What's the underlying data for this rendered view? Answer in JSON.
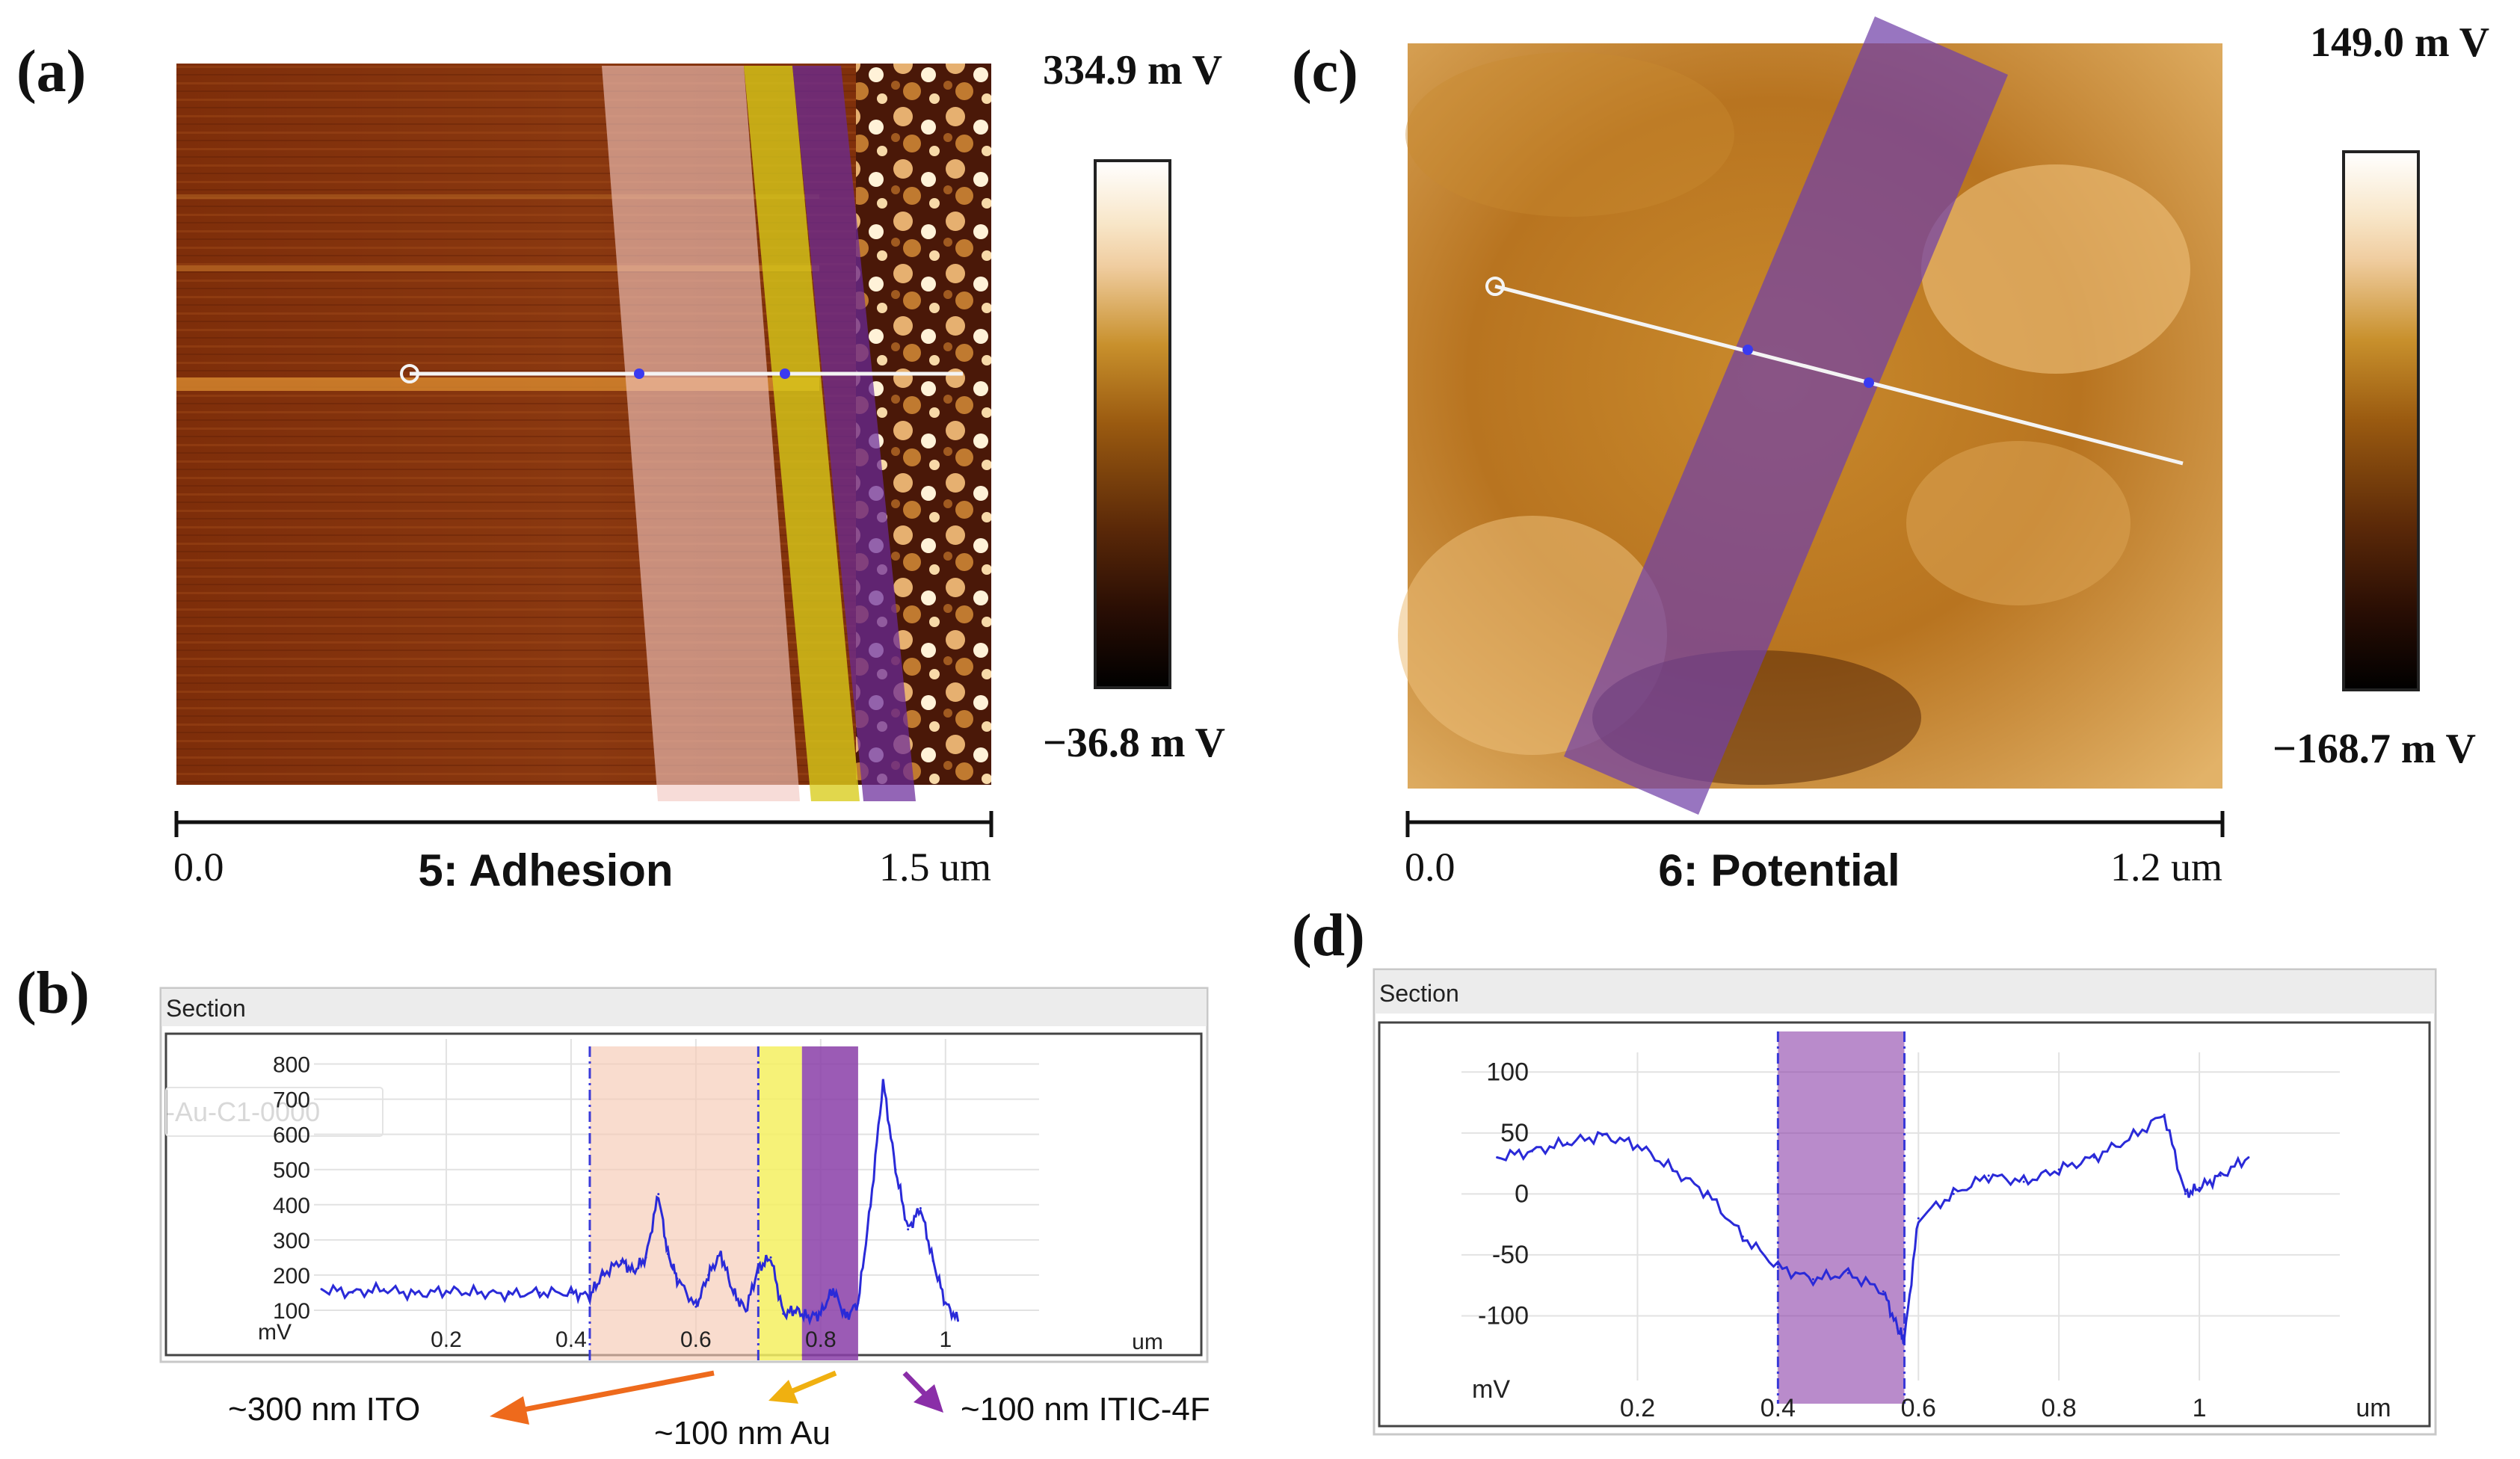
{
  "panels": {
    "a": {
      "label": "(a)",
      "title": "5: Adhesion",
      "scale_start": "0.0",
      "scale_end": "1.5 um",
      "colorbar_max": "334.9 m V",
      "colorbar_min": "−36.8 m V"
    },
    "c": {
      "label": "(c)",
      "title": "6: Potential",
      "scale_start": "0.0",
      "scale_end": "1.2 um",
      "colorbar_max": "149.0 m V",
      "colorbar_min": "−168.7 m V"
    },
    "b": {
      "label": "(b)",
      "header": "Section",
      "ghost_text": "-Au-C1-0000"
    },
    "d": {
      "label": "(d)",
      "header": "Section"
    }
  },
  "annotations": {
    "ito": "~300 nm ITO",
    "au": "~100 nm Au",
    "itic": "~100 nm ITIC-4F"
  },
  "colors": {
    "trace": "#2a2ad8",
    "ito_band": "#f6c9b4",
    "au_band": "#f4f060",
    "itic_band": "#8a3ea8",
    "ito_arrow": "#ee6a1c",
    "au_arrow": "#f0b010",
    "itic_arrow": "#8a2ea8"
  },
  "chart_data": [
    {
      "id": "b",
      "type": "line",
      "title": "Section",
      "xlabel": "um",
      "ylabel": "mV",
      "xlim": [
        0,
        1.15
      ],
      "ylim": [
        0,
        850
      ],
      "xticks": [
        0.2,
        0.4,
        0.6,
        0.8,
        1
      ],
      "xtick_labels": [
        "0.2",
        "0.4",
        "0.6",
        "0.8",
        "1"
      ],
      "yticks": [
        100,
        200,
        300,
        400,
        500,
        600,
        700,
        800
      ],
      "ytick_labels": [
        "100",
        "200",
        "300",
        "400",
        "500",
        "600",
        "700",
        "800"
      ],
      "regions": [
        {
          "name": "ITO",
          "from": 0.43,
          "to": 0.7
        },
        {
          "name": "Au",
          "from": 0.7,
          "to": 0.77
        },
        {
          "name": "ITIC-4F",
          "from": 0.77,
          "to": 0.86
        }
      ],
      "vlines": [
        0.43,
        0.7
      ],
      "x": [
        0.0,
        0.05,
        0.1,
        0.15,
        0.2,
        0.25,
        0.3,
        0.35,
        0.4,
        0.43,
        0.45,
        0.48,
        0.5,
        0.52,
        0.54,
        0.555,
        0.57,
        0.6,
        0.62,
        0.64,
        0.66,
        0.68,
        0.7,
        0.72,
        0.74,
        0.76,
        0.78,
        0.8,
        0.82,
        0.84,
        0.86,
        0.88,
        0.9,
        0.92,
        0.94,
        0.96,
        0.98,
        1.0,
        1.02
      ],
      "y": [
        160,
        150,
        160,
        145,
        155,
        150,
        145,
        150,
        150,
        140,
        200,
        240,
        210,
        250,
        430,
        260,
        190,
        110,
        200,
        260,
        150,
        100,
        220,
        250,
        90,
        100,
        80,
        90,
        160,
        80,
        120,
        400,
        750,
        500,
        330,
        390,
        240,
        120,
        70
      ]
    },
    {
      "id": "d",
      "type": "line",
      "title": "Section",
      "xlabel": "um",
      "ylabel": "mV",
      "xlim": [
        -0.04,
        1.2
      ],
      "ylim": [
        -150,
        110
      ],
      "xticks": [
        0.2,
        0.4,
        0.6,
        0.8,
        1
      ],
      "xtick_labels": [
        "0.2",
        "0.4",
        "0.6",
        "0.8",
        "1"
      ],
      "yticks": [
        100,
        50,
        0,
        -50,
        -100
      ],
      "ytick_labels": [
        "100",
        "50",
        "0",
        "-50",
        "-100"
      ],
      "regions": [
        {
          "name": "ITIC-4F",
          "from": 0.4,
          "to": 0.58
        }
      ],
      "vlines": [
        0.4,
        0.58
      ],
      "x": [
        0.0,
        0.05,
        0.1,
        0.15,
        0.2,
        0.25,
        0.3,
        0.35,
        0.4,
        0.45,
        0.5,
        0.55,
        0.57,
        0.58,
        0.6,
        0.65,
        0.7,
        0.75,
        0.8,
        0.85,
        0.9,
        0.95,
        0.98,
        1.0,
        1.03,
        1.07
      ],
      "y": [
        30,
        35,
        42,
        48,
        40,
        20,
        0,
        -35,
        -60,
        -70,
        -65,
        -80,
        -110,
        -120,
        -20,
        0,
        15,
        10,
        20,
        30,
        45,
        65,
        0,
        5,
        15,
        30
      ]
    }
  ]
}
